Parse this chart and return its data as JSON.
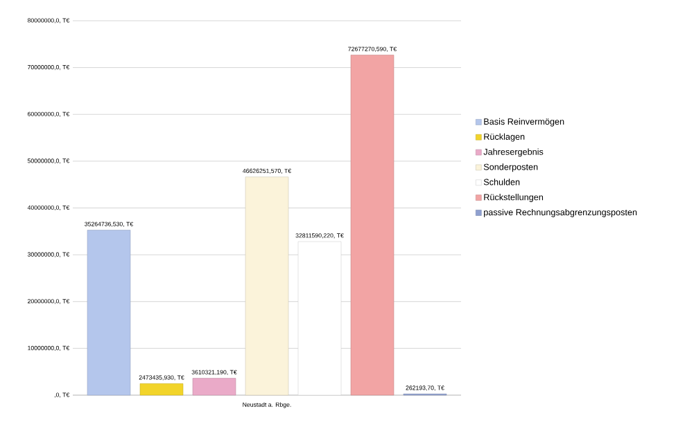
{
  "chart_data": {
    "type": "bar",
    "categories": [
      "Neustadt a. Rbge."
    ],
    "series": [
      {
        "name": "Basis  Reinvermögen",
        "color": "#b4c6ec",
        "values": [
          35264736.53
        ],
        "value_labels": [
          "35264736,530, T€"
        ]
      },
      {
        "name": "Rücklagen",
        "color": "#f2d42a",
        "values": [
          2473435.93
        ],
        "value_labels": [
          "2473435,930, T€"
        ]
      },
      {
        "name": "Jahresergebnis",
        "color": "#eaaac8",
        "values": [
          3610321.19
        ],
        "value_labels": [
          "3610321,190, T€"
        ]
      },
      {
        "name": "Sonderposten",
        "color": "#fbf3da",
        "values": [
          46626251.57
        ],
        "value_labels": [
          "46626251,570, T€"
        ]
      },
      {
        "name": "Schulden",
        "color": "#ffffff",
        "values": [
          32811590.22
        ],
        "value_labels": [
          "32811590,220, T€"
        ]
      },
      {
        "name": "Rückstellungen",
        "color": "#f2a4a4",
        "values": [
          72677270.59
        ],
        "value_labels": [
          "72677270,590, T€"
        ]
      },
      {
        "name": "passive Rechnungsabgrenzungsposten",
        "color": "#8fa0d0",
        "values": [
          262193.7
        ],
        "value_labels": [
          "262193,70, T€"
        ]
      }
    ],
    "ylim": [
      0,
      80000000
    ],
    "yticks": [
      {
        "value": 0,
        "label": ",0, T€"
      },
      {
        "value": 10000000,
        "label": "10000000,0, T€"
      },
      {
        "value": 20000000,
        "label": "20000000,0, T€"
      },
      {
        "value": 30000000,
        "label": "30000000,0, T€"
      },
      {
        "value": 40000000,
        "label": "40000000,0, T€"
      },
      {
        "value": 50000000,
        "label": "50000000,0, T€"
      },
      {
        "value": 60000000,
        "label": "60000000,0, T€"
      },
      {
        "value": 70000000,
        "label": "70000000,0, T€"
      },
      {
        "value": 80000000,
        "label": "80000000,0, T€"
      }
    ],
    "grid": "y",
    "legend": "right"
  }
}
